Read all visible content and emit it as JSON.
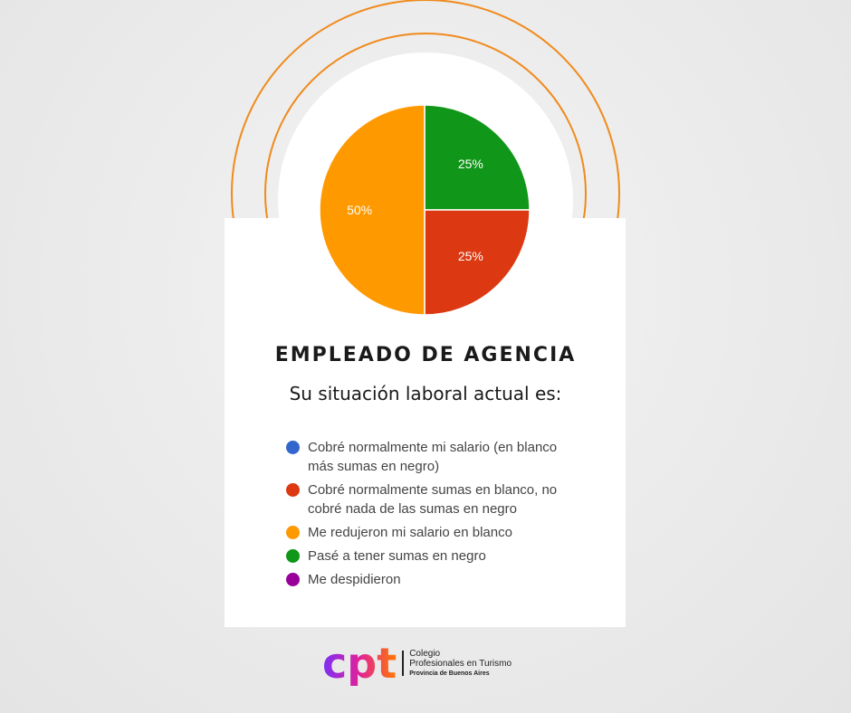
{
  "title": "EMPLEADO DE AGENCIA",
  "subtitle": "Su situación laboral actual es:",
  "chart_data": {
    "type": "pie",
    "slices": [
      {
        "label": "Cobré normalmente mi salario (en blanco más sumas en negro)",
        "value": 0,
        "color": "#3366cc"
      },
      {
        "label": "Cobré normalmente sumas en blanco, no cobré nada de las sumas en negro",
        "value": 25,
        "color": "#dc3912",
        "data_label": "25%"
      },
      {
        "label": "Me redujeron mi salario en blanco",
        "value": 50,
        "color": "#ff9900",
        "data_label": "50%"
      },
      {
        "label": "Pasé a tener sumas en negro",
        "value": 25,
        "color": "#109618",
        "data_label": "25%"
      },
      {
        "label": "Me despidieron",
        "value": 0,
        "color": "#990099"
      }
    ],
    "legend_placement": "bottom"
  },
  "logo": {
    "mark": "cpt",
    "line1": "Colegio",
    "line2": "Profesionales en Turismo",
    "line3": "Provincia de Buenos Aires"
  },
  "accent": "#f08a1c"
}
